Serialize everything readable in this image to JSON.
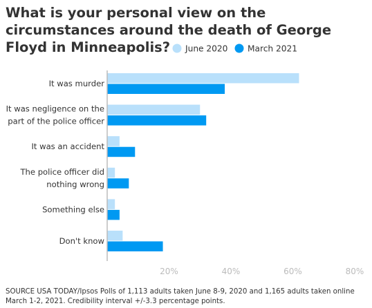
{
  "title": "What is your personal view on the circumstances around the death of George Floyd in Minneapolis?",
  "source": "SOURCE USA TODAY/Ipsos Polls of 1,113 adults taken June 8-9, 2020 and 1,165 adults taken online March 1-2, 2021. Credibility interval +/-3.3 percentage points.",
  "chart_data": {
    "type": "bar",
    "orientation": "horizontal",
    "categories": [
      [
        "It was murder"
      ],
      [
        "It was negligence on the",
        "part of the police officer"
      ],
      [
        "It was an accident"
      ],
      [
        "The police officer did",
        "nothing wrong"
      ],
      [
        "Something else"
      ],
      [
        "Don't know"
      ]
    ],
    "series": [
      {
        "name": "June 2020",
        "color": "#b9e0fb",
        "values": [
          62,
          30,
          4,
          2.5,
          2.5,
          5
        ]
      },
      {
        "name": "March 2021",
        "color": "#0099f2",
        "values": [
          38,
          32,
          9,
          7,
          4,
          18
        ]
      }
    ],
    "xlim": [
      0,
      80
    ],
    "xticks": [
      0,
      20,
      40,
      60,
      80
    ],
    "xtick_labels": [
      "",
      "20%",
      "40%",
      "60%",
      "80%"
    ],
    "grid": false,
    "legend_position": "top-right",
    "axis_color": "#bbbbbb",
    "label_color": "#333333"
  }
}
